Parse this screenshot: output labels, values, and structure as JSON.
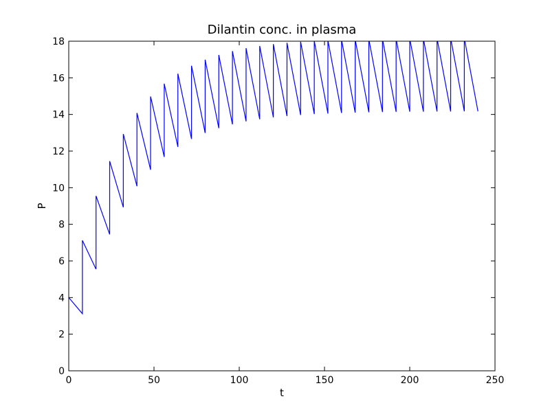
{
  "chart_data": {
    "type": "line",
    "title": "Dilantin conc. in plasma",
    "xlabel": "t",
    "ylabel": "P",
    "xlim": [
      0,
      250
    ],
    "ylim": [
      0,
      18
    ],
    "xticks": [
      0,
      50,
      100,
      150,
      200,
      250
    ],
    "yticks": [
      0,
      2,
      4,
      6,
      8,
      10,
      12,
      14,
      16,
      18
    ],
    "grid": false,
    "legend": "none",
    "series": [
      {
        "color": "#0000ff",
        "x": [
          0,
          8,
          8,
          16,
          16,
          24,
          24,
          32,
          32,
          40,
          40,
          48,
          48,
          56,
          56,
          64,
          64,
          72,
          72,
          80,
          80,
          88,
          88,
          96,
          96,
          104,
          104,
          112,
          112,
          120,
          120,
          128,
          128,
          136,
          136,
          144,
          144,
          152,
          152,
          160,
          160,
          168,
          168,
          176,
          176,
          184,
          184,
          192,
          192,
          200,
          200,
          208,
          208,
          216,
          216,
          224,
          224,
          232,
          232,
          240
        ],
        "y": [
          4.0,
          3.12,
          7.12,
          5.55,
          9.55,
          7.45,
          11.45,
          8.93,
          12.93,
          10.08,
          14.08,
          10.98,
          14.98,
          11.68,
          15.68,
          12.23,
          16.23,
          12.66,
          16.66,
          12.99,
          16.99,
          13.25,
          17.25,
          13.46,
          17.46,
          13.62,
          17.62,
          13.74,
          17.74,
          13.84,
          17.84,
          13.91,
          17.91,
          13.97,
          17.97,
          14.02,
          18.02,
          14.05,
          18.05,
          14.08,
          18.08,
          14.1,
          18.1,
          14.12,
          18.12,
          14.13,
          18.13,
          14.14,
          18.14,
          14.15,
          18.15,
          14.15,
          18.15,
          14.16,
          18.16,
          14.16,
          18.16,
          14.17,
          18.17,
          14.17
        ]
      }
    ]
  }
}
